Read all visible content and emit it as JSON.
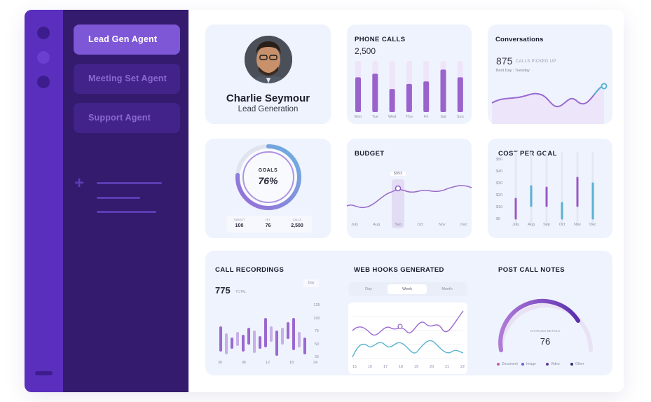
{
  "sidebar": {
    "items": [
      {
        "label": "Lead Gen Agent",
        "active": true
      },
      {
        "label": "Meeting Set Agent",
        "active": false
      },
      {
        "label": "Support Agent",
        "active": false
      }
    ]
  },
  "profile": {
    "name": "Charlie Seymour",
    "role": "Lead Generation"
  },
  "phone_calls": {
    "title": "PHONE CALLS",
    "total": "2,500",
    "days": [
      "Mon",
      "Tue",
      "Wed",
      "Thu",
      "Fri",
      "Sat",
      "Sun"
    ],
    "values": [
      0.68,
      0.75,
      0.45,
      0.55,
      0.6,
      0.83,
      0.68
    ]
  },
  "conversations": {
    "title": "Conversations",
    "count": "875",
    "unit": "CALLS PICKED UP",
    "best_day": "Best Day : Tuesday"
  },
  "goals": {
    "label": "GOALS",
    "percent": "76%",
    "stats": [
      {
        "label": "TARGET",
        "value": "100"
      },
      {
        "label": "HIT",
        "value": "76"
      },
      {
        "label": "CALLS",
        "value": "2,500"
      }
    ]
  },
  "budget": {
    "title": "BUDGET",
    "highlight": "$953",
    "months": [
      "July",
      "Aug",
      "Sep",
      "Oct",
      "Nov",
      "Dec"
    ]
  },
  "cost_per_goal": {
    "title": "COST PER GOAL",
    "y_ticks": [
      "$50",
      "$40",
      "$30",
      "$20",
      "$10",
      "$0"
    ],
    "months": [
      "July",
      "Aug",
      "Sep",
      "Oct",
      "Nov",
      "Dec"
    ]
  },
  "call_recordings": {
    "title": "CALL RECORDINGS",
    "count": "775",
    "unit": "TOTAL",
    "chip": "Day",
    "y_ticks": [
      "125",
      "100",
      "75",
      "50",
      "25"
    ],
    "x_ticks": [
      "30",
      "06",
      "12",
      "18",
      "24"
    ]
  },
  "webhooks": {
    "title": "WEB HOOKS GENERATED",
    "tabs": [
      "Day",
      "Week",
      "Month"
    ],
    "active_tab": "Week",
    "x_ticks": [
      "15",
      "16",
      "17",
      "18",
      "19",
      "20",
      "21",
      "22"
    ]
  },
  "post_call_notes": {
    "title": "POST CALL NOTES",
    "label": "CHARLIES DETAILS",
    "value": "76",
    "legend": [
      {
        "label": "Document",
        "color": "#c45aa8"
      },
      {
        "label": "Image",
        "color": "#7a5ac8"
      },
      {
        "label": "Video",
        "color": "#5a3aa0"
      },
      {
        "label": "Other",
        "color": "#3a2670"
      }
    ]
  },
  "colors": {
    "accent": "#8a5ad0",
    "teal": "#5ab0d0",
    "sidebar": "#341b6e",
    "rail": "#5b2fbd"
  }
}
